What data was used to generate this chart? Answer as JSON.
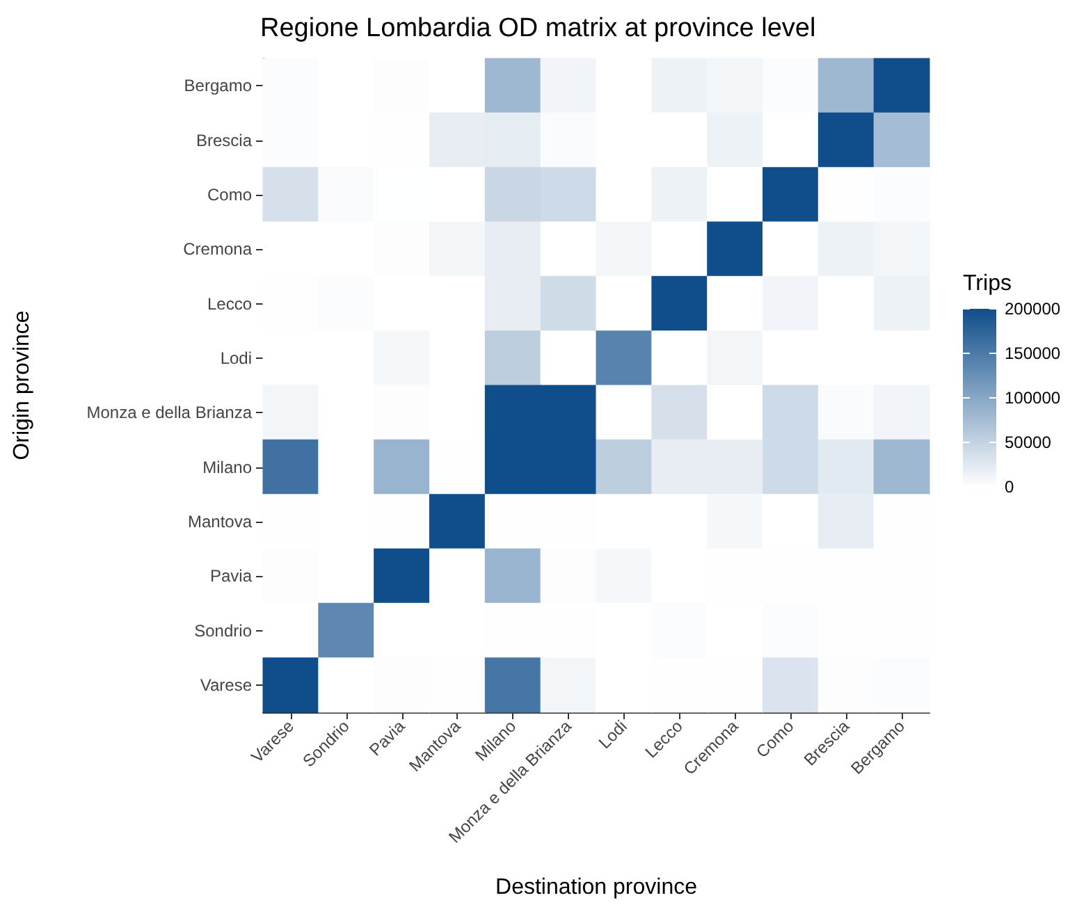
{
  "chart_data": {
    "type": "heatmap",
    "title": "Regione Lombardia OD matrix at province level",
    "xlabel": "Destination province",
    "ylabel": "Origin province",
    "clabel": "Trips",
    "categories": [
      "Varese",
      "Sondrio",
      "Pavia",
      "Mantova",
      "Milano",
      "Monza e della Brianza",
      "Lodi",
      "Lecco",
      "Cremona",
      "Como",
      "Brescia",
      "Bergamo"
    ],
    "y_categories": [
      "Bergamo",
      "Brescia",
      "Como",
      "Cremona",
      "Lecco",
      "Lodi",
      "Monza e della Brianza",
      "Milano",
      "Mantova",
      "Pavia",
      "Sondrio",
      "Varese"
    ],
    "cells": [
      [
        3000,
        0,
        2000,
        0,
        80000,
        12000,
        0,
        15000,
        10000,
        3000,
        80000,
        200000
      ],
      [
        3000,
        0,
        1000,
        20000,
        22000,
        4000,
        0,
        0,
        15000,
        0,
        200000,
        75000
      ],
      [
        35000,
        4000,
        500,
        0,
        45000,
        42000,
        0,
        15000,
        0,
        200000,
        1000,
        3000
      ],
      [
        0,
        0,
        2000,
        10000,
        20000,
        0,
        10000,
        0,
        200000,
        0,
        15000,
        10000
      ],
      [
        1000,
        3000,
        0,
        0,
        20000,
        40000,
        0,
        200000,
        0,
        12000,
        0,
        15000
      ],
      [
        0,
        0,
        8000,
        0,
        55000,
        0,
        140000,
        0,
        10000,
        0,
        0,
        0
      ],
      [
        10000,
        0,
        2000,
        0,
        200000,
        200000,
        0,
        35000,
        0,
        42000,
        4000,
        12000
      ],
      [
        160000,
        0,
        85000,
        1000,
        200000,
        200000,
        55000,
        20000,
        20000,
        42000,
        25000,
        80000
      ],
      [
        1000,
        0,
        1000,
        200000,
        1000,
        1000,
        0,
        0,
        8000,
        0,
        20000,
        1000
      ],
      [
        2000,
        0,
        200000,
        0,
        85000,
        2000,
        8000,
        0,
        1000,
        1000,
        1000,
        1000
      ],
      [
        0,
        135000,
        0,
        0,
        1000,
        1000,
        0,
        3000,
        0,
        3000,
        1000,
        1000
      ],
      [
        200000,
        0,
        2000,
        1000,
        155000,
        10000,
        0,
        1000,
        1000,
        30000,
        2000,
        3000
      ]
    ],
    "clim": [
      0,
      200000
    ],
    "cticks": [
      0,
      50000,
      100000,
      150000,
      200000
    ]
  }
}
